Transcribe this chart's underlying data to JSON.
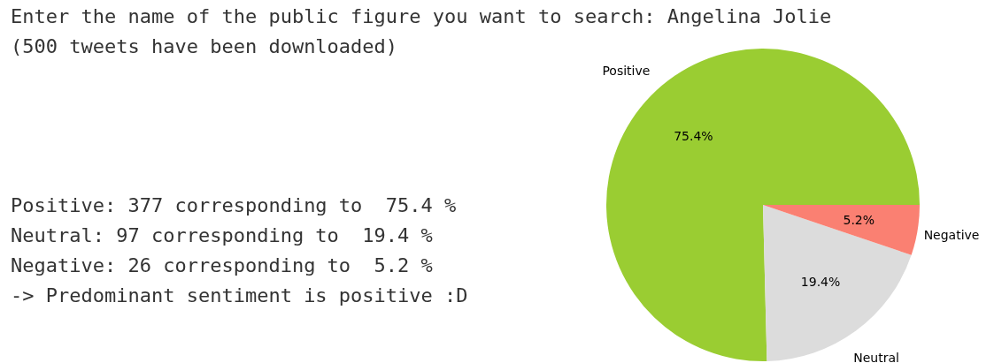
{
  "chart_data": {
    "type": "pie",
    "title": "Enter the name of the public figure you want to search: Angelina Jolie",
    "subtitle": "(500 tweets have been downloaded)",
    "categories": [
      "Positive",
      "Neutral",
      "Negative"
    ],
    "values": [
      75.4,
      19.4,
      5.2
    ],
    "colors": [
      "#9acd32",
      "#dcdcdc",
      "#fa8072"
    ],
    "value_labels": [
      "75.4%",
      "19.4%",
      "5.2%"
    ],
    "annotations": [
      "Positive: 377 corresponding to  75.4 %",
      "Neutral: 97 corresponding to  19.4 %",
      "Negative: 26 corresponding to  5.2 %",
      "-> Predominant sentiment is positive :D"
    ]
  }
}
